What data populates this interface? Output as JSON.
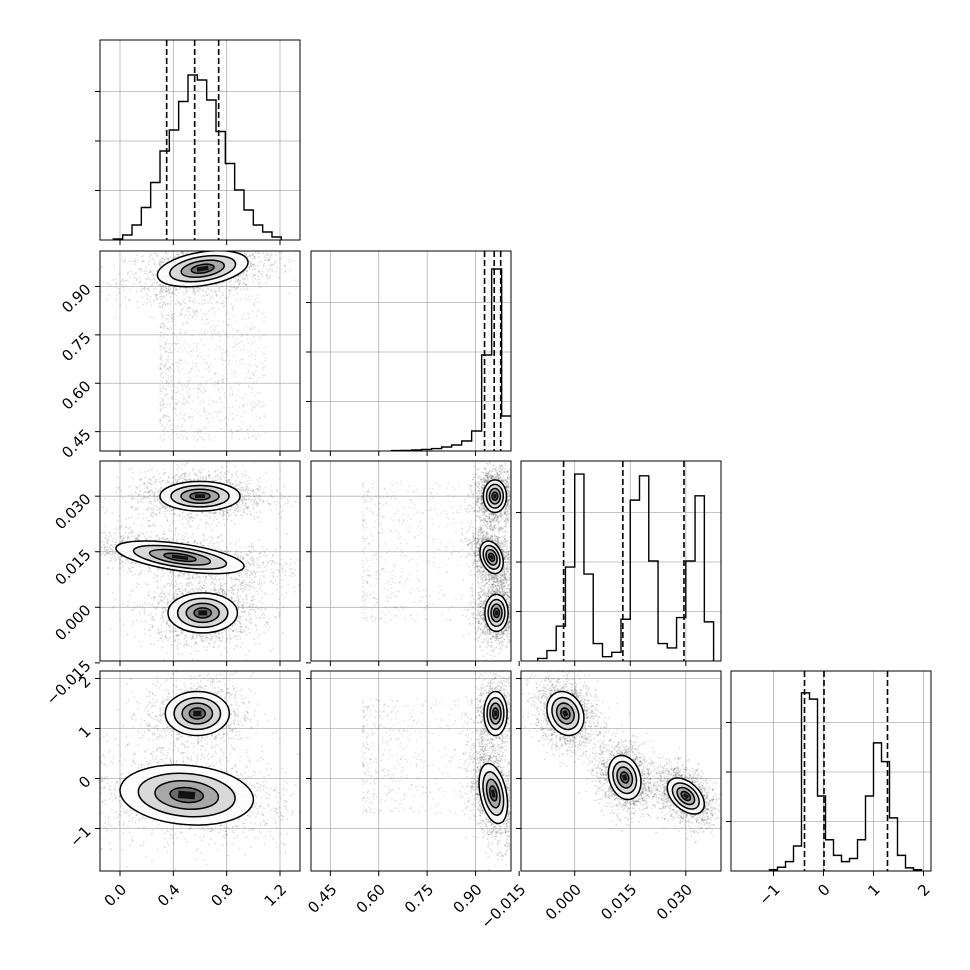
{
  "chart_data": {
    "type": "corner",
    "dimensions": 4,
    "params": [
      {
        "range": [
          -0.15,
          1.35
        ],
        "ticks": [
          "0.0",
          "0.4",
          "0.8",
          "1.2"
        ],
        "tick_values": [
          0.0,
          0.4,
          0.8,
          1.2
        ],
        "quantiles": [
          0.35,
          0.56,
          0.74
        ],
        "hist": {
          "bin_edges": [
            -0.05,
            0.02,
            0.09,
            0.16,
            0.23,
            0.3,
            0.37,
            0.44,
            0.51,
            0.58,
            0.65,
            0.72,
            0.79,
            0.86,
            0.93,
            1.0,
            1.07,
            1.14,
            1.21
          ],
          "counts": [
            0.2,
            1.0,
            3.0,
            6.5,
            11.5,
            17.8,
            22.0,
            27.7,
            33.0,
            32.0,
            28.0,
            21.7,
            15.3,
            10.0,
            6.0,
            3.0,
            1.6,
            0.6
          ],
          "ymax": 40
        }
      },
      {
        "range": [
          0.39,
          1.01
        ],
        "ticks": [
          "0.45",
          "0.60",
          "0.75",
          "0.90"
        ],
        "tick_values": [
          0.45,
          0.6,
          0.75,
          0.9
        ],
        "quantiles": [
          0.928,
          0.958,
          0.978
        ],
        "hist": {
          "bin_edges": [
            0.64,
            0.671,
            0.702,
            0.733,
            0.764,
            0.795,
            0.826,
            0.857,
            0.888,
            0.919,
            0.95,
            0.981,
            1.012
          ],
          "counts": [
            0.2,
            0.3,
            0.5,
            0.8,
            1.2,
            2.0,
            3.0,
            5.0,
            10.0,
            48.0,
            91.0,
            17.5
          ],
          "ymax": 100
        }
      },
      {
        "range": [
          -0.0145,
          0.0395
        ],
        "ticks": [
          "−0.015",
          "0.000",
          "0.015",
          "0.030"
        ],
        "tick_values": [
          -0.015,
          0.0,
          0.015,
          0.03
        ],
        "quantiles": [
          -0.003,
          0.013,
          0.0295
        ],
        "hist": {
          "bin_edges": [
            -0.01,
            -0.0075,
            -0.005,
            -0.0025,
            0.0,
            0.0025,
            0.005,
            0.0075,
            0.01,
            0.0125,
            0.015,
            0.0175,
            0.02,
            0.0225,
            0.025,
            0.0275,
            0.03,
            0.0325,
            0.035,
            0.0375
          ],
          "counts": [
            0.3,
            1.2,
            4.0,
            10.8,
            21.5,
            10.0,
            2.0,
            0.5,
            1.0,
            4.8,
            18.5,
            21.3,
            11.5,
            2.0,
            1.5,
            5.0,
            11.5,
            19.0,
            4.5
          ],
          "ymax": 23
        }
      },
      {
        "range": [
          -1.85,
          2.15
        ],
        "ticks": [
          "−1",
          "0",
          "1",
          "2"
        ],
        "tick_values": [
          -1,
          0,
          1,
          2
        ],
        "quantiles": [
          -0.38,
          0.01,
          1.28
        ],
        "hist": {
          "bin_edges": [
            -1.08,
            -0.92,
            -0.76,
            -0.6,
            -0.44,
            -0.28,
            -0.12,
            0.04,
            0.2,
            0.36,
            0.52,
            0.68,
            0.84,
            1.0,
            1.16,
            1.32,
            1.48,
            1.64,
            1.8,
            1.96
          ],
          "counts": [
            0.2,
            0.6,
            1.5,
            4.0,
            28.5,
            27.5,
            12.0,
            5.0,
            2.5,
            1.5,
            2.0,
            5.0,
            12.0,
            20.5,
            17.5,
            8.5,
            2.5,
            0.5,
            0.2
          ],
          "ymax": 32
        }
      }
    ],
    "pairs": [
      {
        "row": 1,
        "col": 0,
        "modes": [
          {
            "center": [
              0.62,
              0.955
            ],
            "sigma": [
              0.17,
              0.028
            ],
            "corr": 0.35,
            "weight": 1.0
          }
        ],
        "tail": {
          "x": [
            0.3,
            1.1
          ],
          "y": [
            0.42,
            0.94
          ],
          "n": 1000
        }
      },
      {
        "row": 2,
        "col": 0,
        "modes": [
          {
            "center": [
              0.6,
              0.03
            ],
            "sigma": [
              0.15,
              0.002
            ],
            "corr": 0.0,
            "weight": 1.0
          },
          {
            "center": [
              0.45,
              0.0135
            ],
            "sigma": [
              0.24,
              0.0022
            ],
            "corr": -0.55,
            "weight": 1.0
          },
          {
            "center": [
              0.62,
              -0.0015
            ],
            "sigma": [
              0.13,
              0.0027
            ],
            "corr": 0.0,
            "weight": 1.0
          }
        ]
      },
      {
        "row": 3,
        "col": 0,
        "modes": [
          {
            "center": [
              0.58,
              1.3
            ],
            "sigma": [
              0.12,
              0.22
            ],
            "corr": 0.0,
            "weight": 0.6
          },
          {
            "center": [
              0.5,
              -0.33
            ],
            "sigma": [
              0.25,
              0.3
            ],
            "corr": -0.15,
            "weight": 1.0
          }
        ]
      },
      {
        "row": 2,
        "col": 1,
        "modes": [
          {
            "center": [
              0.96,
              0.03
            ],
            "sigma": [
              0.018,
              0.0022
            ],
            "corr": 0.0,
            "weight": 1.0
          },
          {
            "center": [
              0.95,
              0.0135
            ],
            "sigma": [
              0.018,
              0.0022
            ],
            "corr": -0.3,
            "weight": 1.0
          },
          {
            "center": [
              0.965,
              -0.0015
            ],
            "sigma": [
              0.018,
              0.0025
            ],
            "corr": 0.0,
            "weight": 1.0
          }
        ],
        "tail": {
          "x": [
            0.55,
            0.93
          ],
          "y": [
            -0.004,
            0.034
          ],
          "n": 500
        }
      },
      {
        "row": 3,
        "col": 1,
        "modes": [
          {
            "center": [
              0.962,
              1.3
            ],
            "sigma": [
              0.018,
              0.22
            ],
            "corr": 0.0,
            "weight": 0.6
          },
          {
            "center": [
              0.955,
              -0.3
            ],
            "sigma": [
              0.022,
              0.3
            ],
            "corr": -0.35,
            "weight": 1.0
          }
        ],
        "tail": {
          "x": [
            0.55,
            0.93
          ],
          "y": [
            -0.7,
            1.6
          ],
          "n": 500
        }
      },
      {
        "row": 3,
        "col": 2,
        "modes": [
          {
            "center": [
              -0.0025,
              1.3
            ],
            "sigma": [
              0.0025,
              0.22
            ],
            "corr": -0.2,
            "weight": 1.0
          },
          {
            "center": [
              0.0135,
              0.02
            ],
            "sigma": [
              0.0022,
              0.22
            ],
            "corr": -0.2,
            "weight": 1.0
          },
          {
            "center": [
              0.03,
              -0.35
            ],
            "sigma": [
              0.0025,
              0.18
            ],
            "corr": -0.45,
            "weight": 1.0
          }
        ]
      }
    ],
    "grid": true,
    "colors": {
      "line": "#000000",
      "grid": "#b0b0b0",
      "scatter": "#000000",
      "fill": "#000000"
    }
  }
}
